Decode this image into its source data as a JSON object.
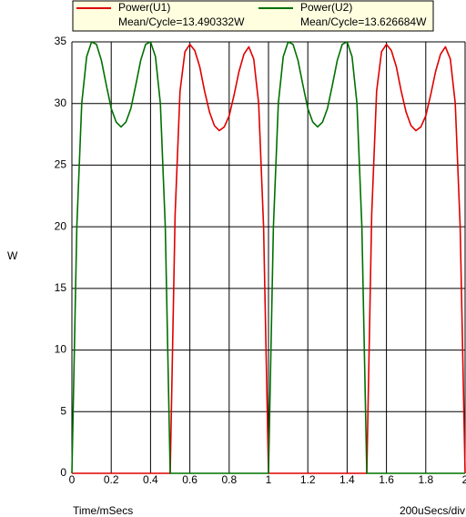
{
  "chart_data": {
    "type": "line",
    "x_label": "Time/mSecs",
    "y_label": "W",
    "scale_label": "200uSecs/div",
    "x": [
      0,
      0.025,
      0.05,
      0.075,
      0.1,
      0.125,
      0.15,
      0.175,
      0.2,
      0.225,
      0.25,
      0.275,
      0.3,
      0.325,
      0.35,
      0.375,
      0.4,
      0.425,
      0.45,
      0.475,
      0.5,
      0.525,
      0.55,
      0.575,
      0.6,
      0.625,
      0.65,
      0.675,
      0.7,
      0.725,
      0.75,
      0.775,
      0.8,
      0.825,
      0.85,
      0.875,
      0.9,
      0.925,
      0.95,
      0.975,
      1,
      1.025,
      1.05,
      1.075,
      1.1,
      1.125,
      1.15,
      1.175,
      1.2,
      1.225,
      1.25,
      1.275,
      1.3,
      1.325,
      1.35,
      1.375,
      1.4,
      1.425,
      1.45,
      1.475,
      1.5,
      1.525,
      1.55,
      1.575,
      1.6,
      1.625,
      1.65,
      1.675,
      1.7,
      1.725,
      1.75,
      1.775,
      1.8,
      1.825,
      1.85,
      1.875,
      1.9,
      1.925,
      1.95,
      1.975,
      2
    ],
    "series": [
      {
        "name": "Power(U1)",
        "color": "#e00000",
        "mean_label": "Mean/Cycle=13.490332W",
        "values": [
          0,
          0,
          0,
          0,
          0,
          0,
          0,
          0,
          0,
          0,
          0,
          0,
          0,
          0,
          0,
          0,
          0,
          0,
          0,
          0,
          0,
          21,
          31,
          34.2,
          34.8,
          34.3,
          33,
          31,
          29.3,
          28.2,
          27.8,
          28.1,
          29,
          30.7,
          32.6,
          34,
          34.6,
          33.6,
          30,
          20,
          0,
          0,
          0,
          0,
          0,
          0,
          0,
          0,
          0,
          0,
          0,
          0,
          0,
          0,
          0,
          0,
          0,
          0,
          0,
          0,
          0,
          21,
          31,
          34.2,
          34.8,
          34.3,
          33,
          31,
          29.3,
          28.2,
          27.8,
          28.1,
          29,
          30.7,
          32.6,
          34,
          34.6,
          33.6,
          30,
          20,
          0
        ]
      },
      {
        "name": "Power(U2)",
        "color": "#007000",
        "mean_label": "Mean/Cycle=13.626684W",
        "values": [
          0,
          20,
          30,
          33.8,
          35,
          34.8,
          33.5,
          31.5,
          29.6,
          28.5,
          28.1,
          28.5,
          29.6,
          31.5,
          33.5,
          34.8,
          35,
          33.8,
          30,
          20,
          0,
          0,
          0,
          0,
          0,
          0,
          0,
          0,
          0,
          0,
          0,
          0,
          0,
          0,
          0,
          0,
          0,
          0,
          0,
          0,
          0,
          20,
          30,
          33.8,
          35,
          34.8,
          33.5,
          31.5,
          29.6,
          28.5,
          28.1,
          28.5,
          29.6,
          31.5,
          33.5,
          34.8,
          35,
          33.8,
          30,
          20,
          0,
          0,
          0,
          0,
          0,
          0,
          0,
          0,
          0,
          0,
          0,
          0,
          0,
          0,
          0,
          0,
          0,
          0,
          0,
          0,
          0
        ]
      }
    ],
    "xlim": [
      0,
      2
    ],
    "xticks": [
      0,
      0.2,
      0.4,
      0.6,
      0.8,
      1,
      1.2,
      1.4,
      1.6,
      1.8,
      2
    ],
    "ylim": [
      0,
      35
    ],
    "yticks": [
      0,
      5,
      10,
      15,
      20,
      25,
      30,
      35
    ],
    "grid": true
  }
}
